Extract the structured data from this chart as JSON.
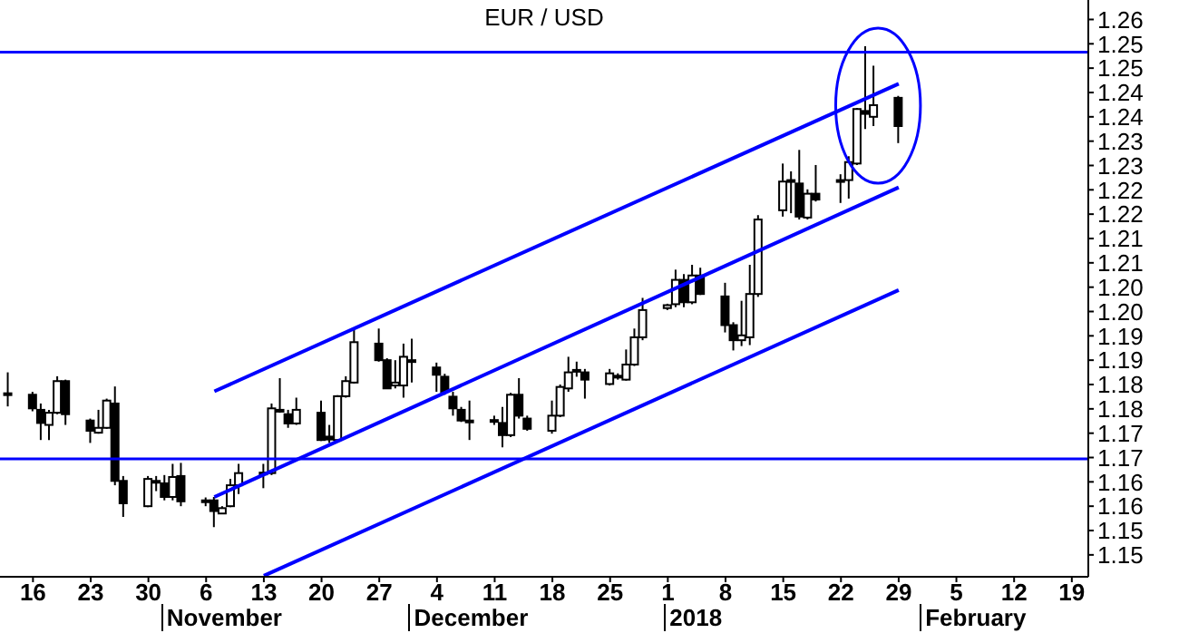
{
  "chart_data": {
    "type": "candlestick",
    "title": "EUR / USD",
    "x": [
      "2017-10-13",
      "2017-10-16",
      "2017-10-17",
      "2017-10-18",
      "2017-10-19",
      "2017-10-20",
      "2017-10-23",
      "2017-10-24",
      "2017-10-25",
      "2017-10-26",
      "2017-10-27",
      "2017-10-30",
      "2017-10-31",
      "2017-11-01",
      "2017-11-02",
      "2017-11-03",
      "2017-11-06",
      "2017-11-07",
      "2017-11-08",
      "2017-11-09",
      "2017-11-10",
      "2017-11-13",
      "2017-11-14",
      "2017-11-15",
      "2017-11-16",
      "2017-11-17",
      "2017-11-20",
      "2017-11-21",
      "2017-11-22",
      "2017-11-23",
      "2017-11-24",
      "2017-11-27",
      "2017-11-28",
      "2017-11-29",
      "2017-11-30",
      "2017-12-01",
      "2017-12-04",
      "2017-12-05",
      "2017-12-06",
      "2017-12-07",
      "2017-12-08",
      "2017-12-11",
      "2017-12-12",
      "2017-12-13",
      "2017-12-14",
      "2017-12-15",
      "2017-12-18",
      "2017-12-19",
      "2017-12-20",
      "2017-12-21",
      "2017-12-22",
      "2017-12-25",
      "2017-12-26",
      "2017-12-27",
      "2017-12-28",
      "2017-12-29",
      "2018-01-01",
      "2018-01-02",
      "2018-01-03",
      "2018-01-04",
      "2018-01-05",
      "2018-01-08",
      "2018-01-09",
      "2018-01-10",
      "2018-01-11",
      "2018-01-12",
      "2018-01-15",
      "2018-01-16",
      "2018-01-17",
      "2018-01-18",
      "2018-01-19",
      "2018-01-22",
      "2018-01-23",
      "2018-01-24",
      "2018-01-25",
      "2018-01-26",
      "2018-01-29"
    ],
    "ohlc": [
      [
        1.1832,
        1.1875,
        1.1805,
        1.183
      ],
      [
        1.1829,
        1.1835,
        1.1795,
        1.1801
      ],
      [
        1.1798,
        1.1811,
        1.1736,
        1.1771
      ],
      [
        1.1767,
        1.1798,
        1.1736,
        1.1792
      ],
      [
        1.1792,
        1.1867,
        1.1789,
        1.1857
      ],
      [
        1.1857,
        1.186,
        1.1767,
        1.1789
      ],
      [
        1.1776,
        1.178,
        1.173,
        1.1755
      ],
      [
        1.1751,
        1.1798,
        1.1749,
        1.1761
      ],
      [
        1.1761,
        1.1821,
        1.1759,
        1.1817
      ],
      [
        1.1811,
        1.1846,
        1.1643,
        1.1652
      ],
      [
        1.1652,
        1.1662,
        1.1578,
        1.1606
      ],
      [
        1.16,
        1.1662,
        1.1598,
        1.1656
      ],
      [
        1.165,
        1.1662,
        1.1631,
        1.1652
      ],
      [
        1.1647,
        1.1664,
        1.1612,
        1.1619
      ],
      [
        1.1619,
        1.1687,
        1.1612,
        1.166
      ],
      [
        1.1662,
        1.1689,
        1.16,
        1.161
      ],
      [
        1.1611,
        1.1618,
        1.16,
        1.1612
      ],
      [
        1.1612,
        1.1619,
        1.1557,
        1.159
      ],
      [
        1.1585,
        1.16,
        1.1585,
        1.1596
      ],
      [
        1.16,
        1.1656,
        1.1598,
        1.1643
      ],
      [
        1.1643,
        1.1687,
        1.1625,
        1.1668
      ],
      [
        1.1666,
        1.1687,
        1.1637,
        1.1669
      ],
      [
        1.1668,
        1.1811,
        1.1664,
        1.1801
      ],
      [
        1.1796,
        1.1863,
        1.1792,
        1.1798
      ],
      [
        1.1789,
        1.1798,
        1.1761,
        1.177
      ],
      [
        1.177,
        1.1823,
        1.1767,
        1.1798
      ],
      [
        1.1792,
        1.1817,
        1.1734,
        1.1736
      ],
      [
        1.1743,
        1.1767,
        1.173,
        1.1737
      ],
      [
        1.1736,
        1.1828,
        1.1734,
        1.1826
      ],
      [
        1.1826,
        1.1867,
        1.1823,
        1.1857
      ],
      [
        1.1854,
        1.1966,
        1.1852,
        1.1937
      ],
      [
        1.1934,
        1.1965,
        1.1897,
        1.19
      ],
      [
        1.19,
        1.1904,
        1.1842,
        1.1842
      ],
      [
        1.1848,
        1.19,
        1.1842,
        1.1854
      ],
      [
        1.1848,
        1.1934,
        1.1823,
        1.1907
      ],
      [
        1.19,
        1.1944,
        1.1854,
        1.1898
      ],
      [
        1.1885,
        1.1895,
        1.1835,
        1.187
      ],
      [
        1.1866,
        1.1872,
        1.1829,
        1.1835
      ],
      [
        1.1825,
        1.1835,
        1.1786,
        1.1801
      ],
      [
        1.1798,
        1.1804,
        1.1773,
        1.1776
      ],
      [
        1.1776,
        1.1817,
        1.1736,
        1.1774
      ],
      [
        1.1775,
        1.1786,
        1.1767,
        1.1777
      ],
      [
        1.1771,
        1.1804,
        1.1721,
        1.1746
      ],
      [
        1.1746,
        1.1833,
        1.1742,
        1.1829
      ],
      [
        1.1829,
        1.1863,
        1.178,
        1.1786
      ],
      [
        1.178,
        1.1786,
        1.1755,
        1.1759
      ],
      [
        1.1755,
        1.1817,
        1.1749,
        1.1786
      ],
      [
        1.1786,
        1.185,
        1.1783,
        1.1845
      ],
      [
        1.1842,
        1.1907,
        1.1835,
        1.1875
      ],
      [
        1.1879,
        1.1897,
        1.1866,
        1.188
      ],
      [
        1.1875,
        1.1882,
        1.1821,
        1.186
      ],
      [
        1.1851,
        1.1882,
        1.1848,
        1.1873
      ],
      [
        1.1866,
        1.1873,
        1.186,
        1.1868
      ],
      [
        1.186,
        1.1922,
        1.1858,
        1.1891
      ],
      [
        1.1891,
        1.1965,
        1.1888,
        1.1947
      ],
      [
        1.1947,
        1.2028,
        1.1941,
        1.2003
      ],
      [
        1.2007,
        1.2016,
        1.2003,
        1.2013
      ],
      [
        1.2015,
        1.2086,
        1.2009,
        1.2065
      ],
      [
        1.2065,
        1.2077,
        1.2009,
        1.2019
      ],
      [
        1.2019,
        1.2096,
        1.2015,
        1.2074
      ],
      [
        1.2074,
        1.209,
        1.2034,
        1.2036
      ],
      [
        1.2031,
        1.2059,
        1.1957,
        1.1972
      ],
      [
        1.1972,
        1.1978,
        1.192,
        1.1941
      ],
      [
        1.1941,
        1.2022,
        1.1929,
        1.1951
      ],
      [
        1.1947,
        1.2096,
        1.1931,
        1.2036
      ],
      [
        1.2036,
        1.2198,
        1.203,
        1.2189
      ],
      [
        1.2208,
        1.2304,
        1.2195,
        1.2267
      ],
      [
        1.2268,
        1.2288,
        1.2202,
        1.227
      ],
      [
        1.2263,
        1.2332,
        1.2189,
        1.2195
      ],
      [
        1.2193,
        1.2251,
        1.2189,
        1.2242
      ],
      [
        1.2242,
        1.2301,
        1.2226,
        1.223
      ],
      [
        1.2268,
        1.2282,
        1.2223,
        1.227
      ],
      [
        1.227,
        1.2319,
        1.2232,
        1.2307
      ],
      [
        1.2304,
        1.2418,
        1.2301,
        1.2416
      ],
      [
        1.2412,
        1.2545,
        1.2375,
        1.2406
      ],
      [
        1.24,
        1.2505,
        1.2381,
        1.2424
      ],
      [
        1.2439,
        1.2443,
        1.2346,
        1.2381
      ]
    ],
    "series": [
      {
        "type": "line",
        "color": "#0000ff",
        "x": [
          "2017-11-07",
          "2018-01-29"
        ],
        "values": [
          1.1836,
          1.2468
        ]
      },
      {
        "type": "line",
        "color": "#0000ff",
        "x": [
          "2017-11-07",
          "2018-01-29"
        ],
        "values": [
          1.1619,
          1.2255
        ]
      },
      {
        "type": "line",
        "color": "#0000ff",
        "x": [
          "2017-11-13",
          "2018-01-29"
        ],
        "values": [
          1.1457,
          1.2044
        ]
      }
    ],
    "ref_lines": [
      {
        "axis": "y",
        "value": 1.2533,
        "color": "#0000ff"
      },
      {
        "axis": "y",
        "value": 1.1697,
        "color": "#0000ff"
      }
    ],
    "xlim": [
      "2017-10-12",
      "2018-02-21"
    ],
    "xticks": [
      {
        "value": "2017-10-16",
        "label": "16"
      },
      {
        "value": "2017-10-23",
        "label": "23"
      },
      {
        "value": "2017-10-30",
        "label": "30"
      },
      {
        "value": "2017-11-06",
        "label": "6"
      },
      {
        "value": "2017-11-13",
        "label": "13"
      },
      {
        "value": "2017-11-20",
        "label": "20"
      },
      {
        "value": "2017-11-27",
        "label": "27"
      },
      {
        "value": "2017-12-04",
        "label": "4"
      },
      {
        "value": "2017-12-11",
        "label": "11"
      },
      {
        "value": "2017-12-18",
        "label": "18"
      },
      {
        "value": "2017-12-25",
        "label": "25"
      },
      {
        "value": "2018-01-01",
        "label": "1"
      },
      {
        "value": "2018-01-08",
        "label": "8"
      },
      {
        "value": "2018-01-15",
        "label": "15"
      },
      {
        "value": "2018-01-22",
        "label": "22"
      },
      {
        "value": "2018-01-29",
        "label": "29"
      },
      {
        "value": "2018-02-05",
        "label": "5"
      },
      {
        "value": "2018-02-12",
        "label": "12"
      },
      {
        "value": "2018-02-19",
        "label": "19"
      }
    ],
    "ylim": [
      1.1455,
      1.264
    ],
    "yticks": [
      1.15,
      {
        "value": 1.155,
        "label": "1.15"
      },
      1.16,
      {
        "value": 1.165,
        "label": "1.16"
      },
      1.17,
      {
        "value": 1.175,
        "label": "1.17"
      },
      1.18,
      {
        "value": 1.185,
        "label": "1.18"
      },
      1.19,
      {
        "value": 1.195,
        "label": "1.19"
      },
      {
        "value": 1.2,
        "label": "1.20"
      },
      {
        "value": 1.205,
        "label": "1.20"
      },
      1.21,
      {
        "value": 1.215,
        "label": "1.21"
      },
      1.22,
      {
        "value": 1.225,
        "label": "1.22"
      },
      1.23,
      {
        "value": 1.235,
        "label": "1.23"
      },
      1.24,
      {
        "value": 1.245,
        "label": "1.24"
      },
      1.25,
      {
        "value": 1.255,
        "label": "1.25"
      },
      1.26
    ],
    "annotations": [
      "November",
      "December",
      "2018",
      "February"
    ]
  }
}
